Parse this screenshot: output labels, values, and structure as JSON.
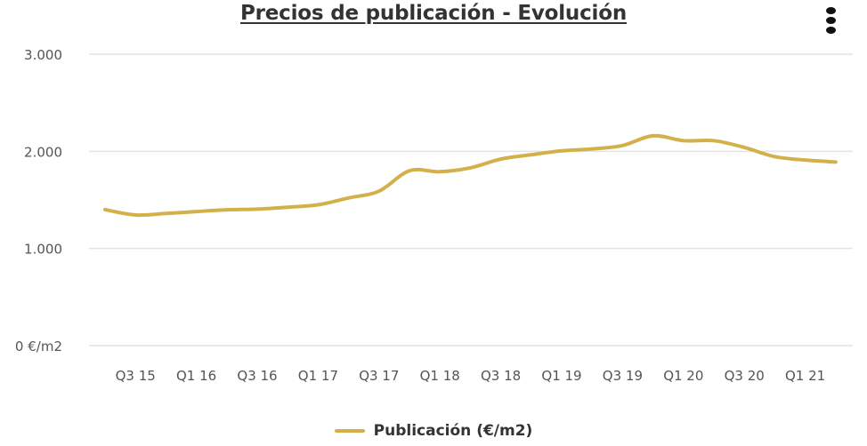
{
  "colors": {
    "series": "#d4b04a",
    "grid": "#e3e3e3",
    "text": "#555555"
  },
  "chart_data": {
    "type": "line",
    "title": "Precios de publicación - Evolución",
    "xlabel": "",
    "ylabel": "",
    "ylim": [
      0,
      3000
    ],
    "y_ticks": [
      {
        "value": 0,
        "label": "0 €/m2"
      },
      {
        "value": 1000,
        "label": "1.000"
      },
      {
        "value": 2000,
        "label": "2.000"
      },
      {
        "value": 3000,
        "label": "3.000"
      }
    ],
    "categories": [
      "Q2 15",
      "Q3 15",
      "Q4 15",
      "Q1 16",
      "Q2 16",
      "Q3 16",
      "Q4 16",
      "Q1 17",
      "Q2 17",
      "Q3 17",
      "Q4 17",
      "Q1 18",
      "Q2 18",
      "Q3 18",
      "Q4 18",
      "Q1 19",
      "Q2 19",
      "Q3 19",
      "Q4 19",
      "Q1 20",
      "Q2 20",
      "Q3 20",
      "Q4 20",
      "Q1 21",
      "Q2 21"
    ],
    "x_tick_labels": [
      "Q3 15",
      "Q1 16",
      "Q3 16",
      "Q1 17",
      "Q3 17",
      "Q1 18",
      "Q3 18",
      "Q1 19",
      "Q3 19",
      "Q1 20",
      "Q3 20",
      "Q1 21"
    ],
    "grid": true,
    "legend_position": "bottom-center",
    "series": [
      {
        "name": "Publicación (€/m2)",
        "values": [
          1400,
          1345,
          1360,
          1380,
          1398,
          1405,
          1425,
          1450,
          1520,
          1590,
          1800,
          1790,
          1830,
          1920,
          1965,
          2005,
          2025,
          2060,
          2160,
          2110,
          2110,
          2040,
          1945,
          1910,
          1890
        ]
      }
    ]
  }
}
